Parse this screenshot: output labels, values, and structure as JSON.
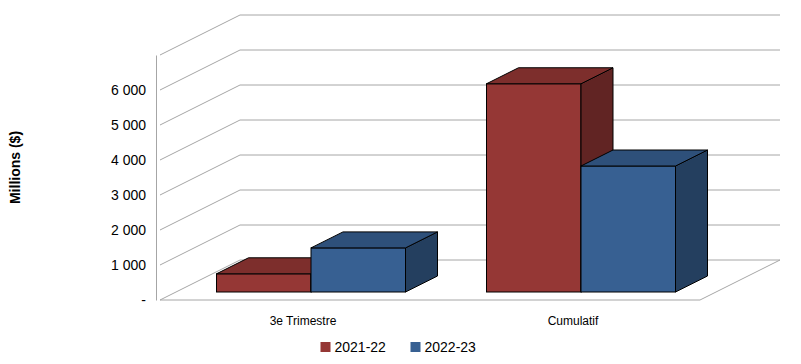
{
  "chart_data": {
    "type": "bar",
    "y_label": "Millions ($)",
    "categories": [
      "3e Trimestre",
      "Cumulatif"
    ],
    "series": [
      {
        "name": "2021-22",
        "color": "#953735",
        "values": [
          520,
          5950
        ]
      },
      {
        "name": "2022-23",
        "color": "#376092",
        "values": [
          1260,
          3600
        ]
      }
    ],
    "ylim": [
      0,
      7000
    ],
    "yticks": [
      {
        "value": 0,
        "label": "-"
      },
      {
        "value": 1000,
        "label": "1 000"
      },
      {
        "value": 2000,
        "label": "2 000"
      },
      {
        "value": 3000,
        "label": "3 000"
      },
      {
        "value": 4000,
        "label": "4 000"
      },
      {
        "value": 5000,
        "label": "5 000"
      },
      {
        "value": 6000,
        "label": "6 000"
      }
    ],
    "grid": true,
    "legend": "bottom"
  }
}
